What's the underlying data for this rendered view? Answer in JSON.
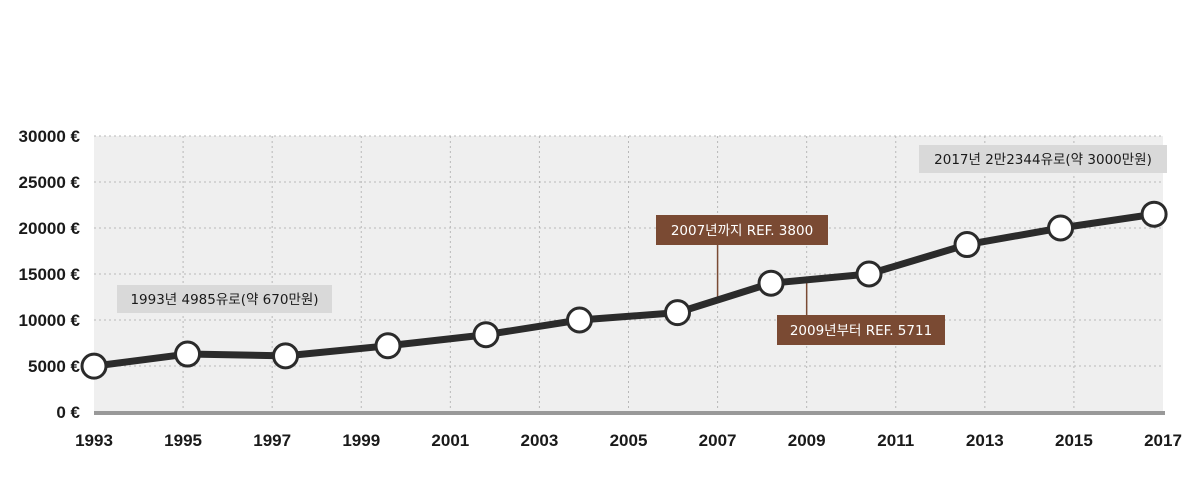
{
  "chart_data": {
    "type": "line",
    "title": "",
    "xlabel": "",
    "ylabel": "",
    "x": [
      "1993",
      "1995",
      "1997",
      "1999",
      "2001",
      "2003",
      "2005",
      "2007",
      "2009",
      "2011",
      "2013",
      "2015",
      "2017"
    ],
    "x_tick_labels": [
      "1993",
      "1995",
      "1997",
      "1999",
      "2001",
      "2003",
      "2005",
      "2007",
      "2009",
      "2011",
      "2013",
      "2015",
      "2017"
    ],
    "y_tick_labels": [
      "0 €",
      "5000 €",
      "10000 €",
      "15000 €",
      "20000 €",
      "25000 €",
      "30000 €"
    ],
    "y_ticks": [
      0,
      5000,
      10000,
      15000,
      20000,
      25000,
      30000
    ],
    "ylim": [
      0,
      30000
    ],
    "grid": true,
    "series": [
      {
        "x": [
          1993,
          1995.1,
          1997.3,
          1999.6,
          2001.8,
          2003.9,
          2006.1,
          2008.2,
          2010.4,
          2012.6,
          2014.7,
          2016.8
        ],
        "values": [
          4985,
          6300,
          6100,
          7200,
          8400,
          10000,
          10800,
          14000,
          15000,
          18200,
          20000,
          21500
        ]
      }
    ],
    "annotations": [
      {
        "text": "1993년 4985유로(약 670만원)",
        "style": "gray"
      },
      {
        "text": "2007년까지 REF. 3800",
        "style": "brown",
        "x": 2007
      },
      {
        "text": "2009년부터 REF. 5711",
        "style": "brown",
        "x": 2009
      },
      {
        "text": "2017년 2만2344유로(약 3000만원)",
        "style": "gray"
      }
    ],
    "colors": {
      "line": "#2b2b2b",
      "plot_bg": "#efefef",
      "gray_label": "#d9d9d9",
      "brown_label": "#7a4a33",
      "baseline": "#999999"
    }
  }
}
